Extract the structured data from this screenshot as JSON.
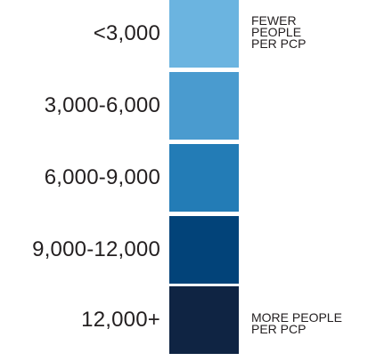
{
  "legend": {
    "rows": [
      {
        "label": "<3,000",
        "color": "#6bb4e0"
      },
      {
        "label": "3,000-6,000",
        "color": "#4a9bcf"
      },
      {
        "label": "6,000-9,000",
        "color": "#237cb6"
      },
      {
        "label": "9,000-12,000",
        "color": "#024379"
      },
      {
        "label": "12,000+",
        "color": "#0f2443"
      }
    ],
    "top_note": "FEWER\nPEOPLE\nPER PCP",
    "bottom_note": "MORE PEOPLE\nPER PCP"
  }
}
